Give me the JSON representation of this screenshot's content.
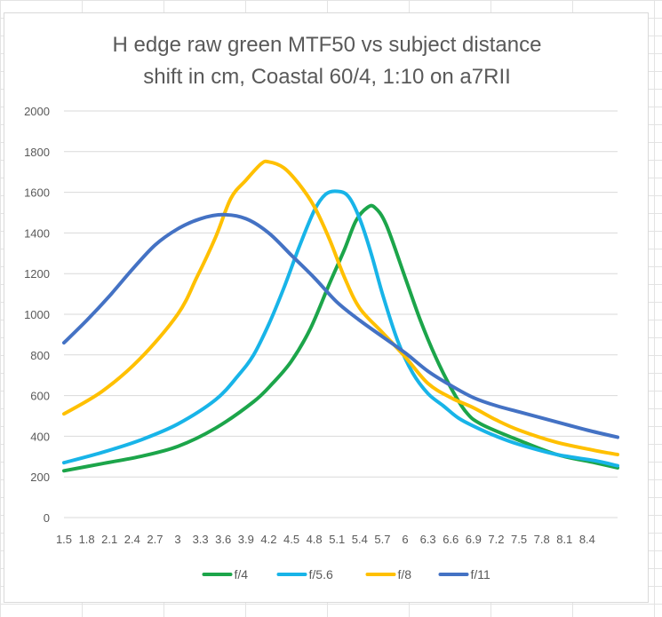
{
  "chart_data": {
    "type": "line",
    "title_lines": [
      "H edge raw  green MTF50 vs subject distance",
      "shift in cm, Coastal 60/4, 1:10 on a7RII"
    ],
    "xlabel": "",
    "ylabel": "",
    "ylim": [
      0,
      2000
    ],
    "yticks": [
      0,
      200,
      400,
      600,
      800,
      1000,
      1200,
      1400,
      1600,
      1800,
      2000
    ],
    "x_tick_labels": [
      "1.5",
      "1.8",
      "2.1",
      "2.4",
      "2.7",
      "3",
      "3.3",
      "3.6",
      "3.9",
      "4.2",
      "4.5",
      "4.8",
      "5.1",
      "5.4",
      "5.7",
      "6",
      "6.3",
      "6.6",
      "6.9",
      "7.2",
      "7.5",
      "7.8",
      "8.1",
      "8.4"
    ],
    "x_tick_values": [
      1.5,
      1.8,
      2.1,
      2.4,
      2.7,
      3.0,
      3.3,
      3.6,
      3.9,
      4.2,
      4.5,
      4.8,
      5.1,
      5.4,
      5.7,
      6.0,
      6.3,
      6.6,
      6.9,
      7.2,
      7.5,
      7.8,
      8.1,
      8.4
    ],
    "xlim": [
      1.5,
      8.8
    ],
    "grid": "horizontal",
    "legend_position": "bottom",
    "series": [
      {
        "name": "f/4",
        "color": "#1ca54a",
        "x": [
          1.5,
          2.0,
          2.5,
          3.0,
          3.5,
          4.0,
          4.25,
          4.5,
          4.75,
          5.0,
          5.2,
          5.35,
          5.5,
          5.6,
          5.75,
          6.0,
          6.2,
          6.4,
          6.6,
          6.8,
          7.0,
          7.5,
          8.0,
          8.5,
          8.8
        ],
        "y": [
          230,
          265,
          300,
          350,
          440,
          570,
          660,
          770,
          930,
          1150,
          1320,
          1460,
          1525,
          1525,
          1440,
          1180,
          970,
          790,
          640,
          520,
          460,
          380,
          310,
          270,
          245
        ]
      },
      {
        "name": "f/5.6",
        "color": "#18b4e8",
        "x": [
          1.5,
          2.0,
          2.5,
          3.0,
          3.5,
          3.8,
          4.0,
          4.2,
          4.4,
          4.6,
          4.8,
          4.95,
          5.1,
          5.25,
          5.4,
          5.55,
          5.7,
          5.9,
          6.1,
          6.3,
          6.5,
          6.7,
          6.9,
          7.2,
          7.5,
          8.0,
          8.5,
          8.8
        ],
        "y": [
          270,
          320,
          380,
          460,
          580,
          700,
          800,
          950,
          1130,
          1330,
          1510,
          1590,
          1605,
          1580,
          1470,
          1300,
          1100,
          870,
          710,
          610,
          550,
          490,
          450,
          400,
          360,
          310,
          280,
          255
        ]
      },
      {
        "name": "f/8",
        "color": "#ffc000",
        "x": [
          1.5,
          2.0,
          2.5,
          3.0,
          3.25,
          3.5,
          3.7,
          3.9,
          4.1,
          4.2,
          4.4,
          4.6,
          4.8,
          5.0,
          5.2,
          5.4,
          5.7,
          6.0,
          6.3,
          6.6,
          6.9,
          7.2,
          7.5,
          8.0,
          8.5,
          8.8
        ],
        "y": [
          510,
          620,
          780,
          1000,
          1180,
          1380,
          1570,
          1660,
          1740,
          1750,
          1720,
          1640,
          1530,
          1370,
          1180,
          1030,
          910,
          790,
          660,
          590,
          540,
          480,
          430,
          370,
          330,
          310
        ]
      },
      {
        "name": "f/11",
        "color": "#4472c4",
        "x": [
          1.5,
          1.8,
          2.1,
          2.4,
          2.7,
          3.0,
          3.3,
          3.6,
          3.9,
          4.2,
          4.5,
          4.8,
          5.1,
          5.4,
          5.7,
          6.0,
          6.3,
          6.6,
          6.9,
          7.2,
          7.5,
          7.8,
          8.1,
          8.4,
          8.8
        ],
        "y": [
          860,
          970,
          1090,
          1220,
          1340,
          1420,
          1470,
          1490,
          1470,
          1400,
          1290,
          1180,
          1060,
          970,
          890,
          810,
          720,
          650,
          590,
          550,
          520,
          490,
          460,
          430,
          395
        ]
      }
    ]
  }
}
